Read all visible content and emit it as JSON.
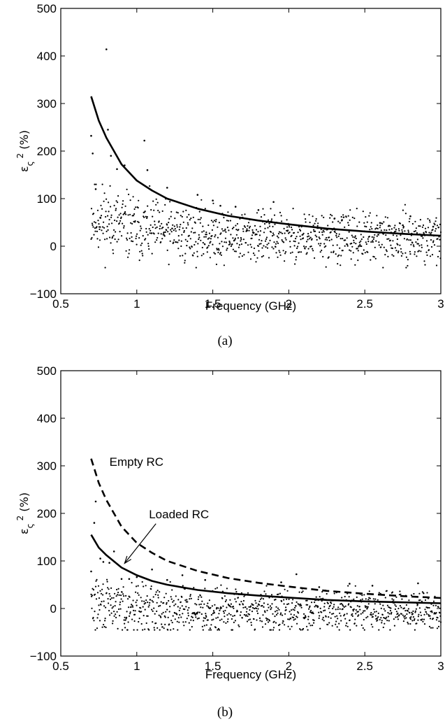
{
  "chart_data": [
    {
      "type": "scatter",
      "caption": "(a)",
      "xlabel": "Frequency (GHz)",
      "ylabel": "ε_ς² (%)",
      "xlim": [
        0.5,
        3
      ],
      "ylim": [
        -100,
        500
      ],
      "xticks": [
        "0.5",
        "1",
        "1.5",
        "2",
        "2.5",
        "3"
      ],
      "yticks": [
        "−100",
        "0",
        "100",
        "200",
        "300",
        "400",
        "500"
      ],
      "grid": false,
      "series": [
        {
          "style": "solid",
          "x": [
            0.7,
            0.75,
            0.8,
            0.9,
            1.0,
            1.1,
            1.2,
            1.4,
            1.6,
            1.8,
            2.0,
            2.25,
            2.5,
            2.75,
            3.0
          ],
          "y": [
            315,
            264,
            228,
            172,
            138,
            117,
            100,
            79,
            64,
            54,
            46,
            37,
            31,
            26,
            22
          ]
        },
        {
          "style": "dots",
          "x": [
            0.7,
            0.71,
            0.73,
            0.76,
            0.8,
            0.81,
            0.83,
            0.87,
            0.92,
            1.05,
            1.07,
            1.2,
            1.4,
            1.5,
            1.55,
            1.65,
            1.8,
            1.9,
            2.3,
            2.35,
            2.6,
            2.75,
            2.8,
            2.95
          ],
          "y": [
            232,
            195,
            120,
            60,
            414,
            245,
            190,
            162,
            170,
            222,
            160,
            123,
            108,
            96,
            85,
            83,
            76,
            93,
            58,
            55,
            49,
            44,
            63,
            41
          ]
        }
      ]
    },
    {
      "type": "scatter",
      "caption": "(b)",
      "xlabel": "Frequency (GHz)",
      "ylabel": "ε_ς² (%)",
      "xlim": [
        0.5,
        3
      ],
      "ylim": [
        -100,
        500
      ],
      "xticks": [
        "0.5",
        "1",
        "1.5",
        "2",
        "2.5",
        "3"
      ],
      "yticks": [
        "−100",
        "0",
        "100",
        "200",
        "300",
        "400",
        "500"
      ],
      "grid": false,
      "annotations": [
        {
          "text": "Empty RC",
          "x": 0.82,
          "y": 300
        },
        {
          "text": "Loaded RC",
          "x": 1.08,
          "y": 190,
          "arrow_to": [
            0.92,
            95
          ]
        }
      ],
      "series": [
        {
          "name": "Empty RC",
          "style": "dashed",
          "x": [
            0.7,
            0.75,
            0.8,
            0.9,
            1.0,
            1.1,
            1.2,
            1.4,
            1.6,
            1.8,
            2.0,
            2.25,
            2.5,
            2.75,
            3.0
          ],
          "y": [
            315,
            264,
            228,
            172,
            138,
            117,
            100,
            79,
            64,
            54,
            46,
            37,
            31,
            26,
            22
          ]
        },
        {
          "name": "Loaded RC",
          "style": "solid",
          "x": [
            0.7,
            0.75,
            0.8,
            0.9,
            1.0,
            1.1,
            1.2,
            1.4,
            1.6,
            1.8,
            2.0,
            2.25,
            2.5,
            2.75,
            3.0
          ],
          "y": [
            155,
            128,
            112,
            86,
            70,
            58,
            50,
            39,
            32,
            27,
            23,
            18,
            15,
            13,
            11
          ]
        },
        {
          "style": "dots",
          "x": [
            0.7,
            0.72,
            0.73,
            0.76,
            0.78,
            0.82,
            0.85,
            0.9,
            0.95,
            1.0,
            1.1,
            1.2,
            1.3,
            1.45,
            1.95,
            2.05,
            2.2,
            2.4,
            2.55,
            2.85
          ],
          "y": [
            78,
            180,
            225,
            105,
            98,
            96,
            120,
            62,
            62,
            66,
            82,
            60,
            70,
            60,
            55,
            72,
            45,
            52,
            48,
            53
          ]
        }
      ]
    }
  ]
}
